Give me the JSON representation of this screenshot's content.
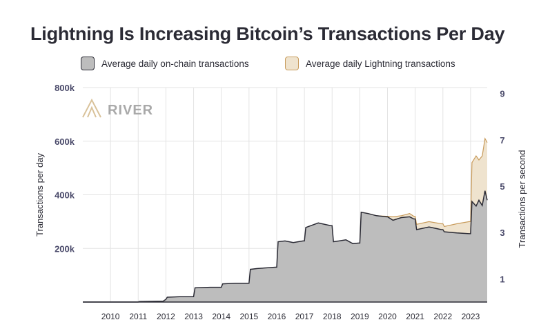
{
  "chart_data": {
    "type": "area",
    "title": "Lightning Is Increasing Bitcoin’s Transactions Per Day",
    "logo_text": "RIVER",
    "ylabel": "Transactions per day",
    "y2label": "Transactions per second",
    "ylim": [
      0,
      800000
    ],
    "yticks": [
      200000,
      400000,
      600000,
      800000
    ],
    "ytick_labels": [
      "200k",
      "400k",
      "600k",
      "800k"
    ],
    "y2lim": [
      0,
      9.26
    ],
    "y2ticks": [
      1,
      3,
      5,
      7,
      9
    ],
    "y2tick_labels": [
      "1",
      "3",
      "5",
      "7",
      "9"
    ],
    "xlim": [
      2009.0,
      2023.6
    ],
    "xticks": [
      2010,
      2011,
      2012,
      2013,
      2014,
      2015,
      2016,
      2017,
      2018,
      2019,
      2020,
      2021,
      2022,
      2023
    ],
    "xtick_labels": [
      "2010",
      "2011",
      "2012",
      "2013",
      "2014",
      "2015",
      "2016",
      "2017",
      "2018",
      "2019",
      "2020",
      "2021",
      "2022",
      "2023"
    ],
    "grid": true,
    "legend_position": "top",
    "series": [
      {
        "name": "Average daily on-chain transactions",
        "color": "#bdbdbd",
        "stroke": "#2b2b35",
        "x": [
          2009.0,
          2011.0,
          2011.05,
          2011.9,
          2012.0,
          2012.05,
          2012.5,
          2012.95,
          2013.0,
          2013.05,
          2013.6,
          2013.95,
          2014.0,
          2014.05,
          2014.5,
          2014.95,
          2015.0,
          2015.05,
          2015.3,
          2015.95,
          2016.0,
          2016.05,
          2016.3,
          2016.6,
          2016.95,
          2017.0,
          2017.05,
          2017.5,
          2017.95,
          2018.0,
          2018.05,
          2018.25,
          2018.5,
          2018.75,
          2018.95,
          2019.0,
          2019.05,
          2019.3,
          2019.6,
          2019.95,
          2020.0,
          2020.2,
          2020.5,
          2020.8,
          2020.95,
          2021.0,
          2021.05,
          2021.5,
          2021.95,
          2022.0,
          2022.05,
          2022.5,
          2022.95,
          2023.0,
          2023.05,
          2023.2,
          2023.3,
          2023.42,
          2023.52,
          2023.6
        ],
        "values": [
          0,
          0,
          2000,
          3000,
          10000,
          18000,
          20000,
          20000,
          20000,
          53000,
          55000,
          55000,
          55000,
          68000,
          70000,
          70000,
          70000,
          122000,
          125000,
          130000,
          130000,
          225000,
          228000,
          222000,
          228000,
          228000,
          278000,
          295000,
          285000,
          285000,
          225000,
          228000,
          232000,
          218000,
          220000,
          220000,
          335000,
          330000,
          322000,
          318000,
          318000,
          305000,
          315000,
          318000,
          310000,
          310000,
          270000,
          280000,
          270000,
          270000,
          262000,
          258000,
          255000,
          255000,
          375000,
          358000,
          380000,
          360000,
          415000,
          380000
        ]
      },
      {
        "name": "Average daily Lightning transactions",
        "color": "#efe3ce",
        "stroke": "#c89b5b",
        "x": [
          2019.0,
          2019.05,
          2019.3,
          2019.6,
          2019.95,
          2020.0,
          2020.2,
          2020.5,
          2020.8,
          2020.95,
          2021.0,
          2021.05,
          2021.5,
          2021.95,
          2022.0,
          2022.05,
          2022.5,
          2022.95,
          2023.0,
          2023.05,
          2023.2,
          2023.3,
          2023.42,
          2023.52,
          2023.6
        ],
        "values": [
          220000,
          335000,
          330000,
          322000,
          320000,
          320000,
          318000,
          322000,
          330000,
          320000,
          320000,
          290000,
          300000,
          292000,
          292000,
          282000,
          292000,
          300000,
          300000,
          520000,
          545000,
          530000,
          545000,
          610000,
          595000
        ]
      }
    ]
  }
}
